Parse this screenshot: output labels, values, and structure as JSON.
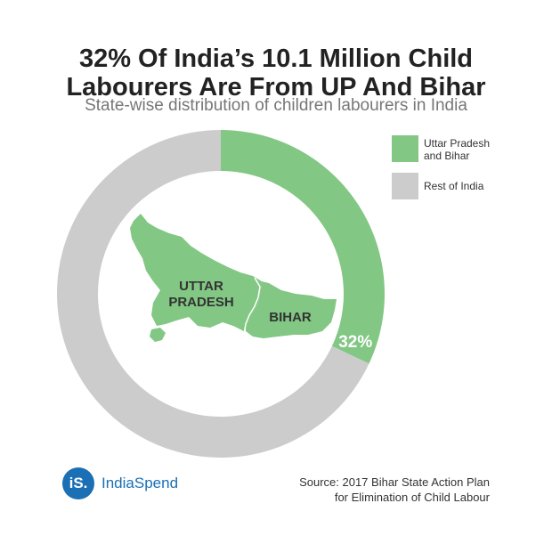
{
  "title": {
    "line1": "32% Of India’s 10.1 Million Child",
    "line2": "Labourers Are From UP And Bihar"
  },
  "subtitle": "State-wise distribution of children labourers in India",
  "chart_data": {
    "type": "pie",
    "variant": "donut",
    "title": "32% Of India’s 10.1 Million Child Labourers Are From UP And Bihar",
    "subtitle": "State-wise distribution of children labourers in India",
    "categories": [
      "Uttar Pradesh and Bihar",
      "Rest of India"
    ],
    "values": [
      32,
      68
    ],
    "unit": "%",
    "colors": [
      "#82c783",
      "#cccccc"
    ],
    "data_labels": [
      "32%"
    ],
    "legend_position": "top-right",
    "center_map_labels": [
      "UTTAR PRADESH",
      "BIHAR"
    ]
  },
  "legend": {
    "items": [
      {
        "label_line1": "Uttar Pradesh",
        "label_line2": "and Bihar",
        "color": "#82c783"
      },
      {
        "label_line1": "Rest of India",
        "label_line2": "",
        "color": "#cccccc"
      }
    ]
  },
  "map": {
    "up_line1": "UTTAR",
    "up_line2": "PRADESH",
    "bihar": "BIHAR",
    "color": "#82c783"
  },
  "logo": {
    "mark": "iS.",
    "name": "IndiaSpend",
    "color": "#1a6fb5"
  },
  "source": {
    "line1": "Source: 2017 Bihar State Action Plan",
    "line2": "for Elimination of Child Labour"
  }
}
